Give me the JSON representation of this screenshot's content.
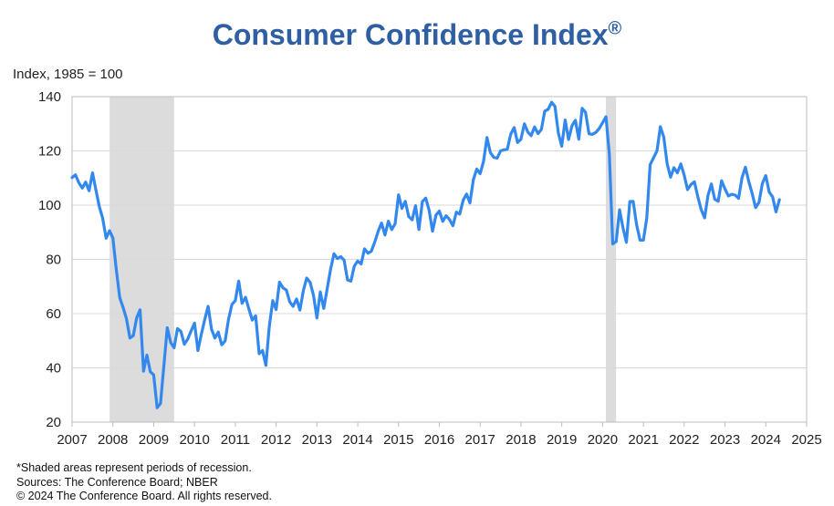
{
  "title": "Consumer Confidence Index",
  "title_mark": "®",
  "notes": [
    "*Shaded areas represent periods of recession.",
    "Sources: The Conference Board;  NBER",
    "© 2024 The Conference Board. All rights reserved."
  ],
  "colors": {
    "title": "#2e5fa3",
    "line": "#3388ee",
    "recession": "#dcdcdc",
    "grid": "#d9d9d9"
  },
  "chart_data": {
    "type": "line",
    "title": "Consumer Confidence Index®",
    "xlabel": "",
    "ylabel": "Index, 1985 = 100",
    "xlim": [
      2007,
      2025
    ],
    "ylim": [
      20,
      140
    ],
    "yticks": [
      20,
      40,
      60,
      80,
      100,
      120,
      140
    ],
    "xticks": [
      2007,
      2008,
      2009,
      2010,
      2011,
      2012,
      2013,
      2014,
      2015,
      2016,
      2017,
      2018,
      2019,
      2020,
      2021,
      2022,
      2023,
      2024,
      2025
    ],
    "grid": true,
    "recessions": [
      {
        "start": 2007.92,
        "end": 2009.5
      },
      {
        "start": 2020.08,
        "end": 2020.33
      }
    ],
    "series": [
      {
        "name": "Consumer Confidence Index",
        "x_start": 2007.0,
        "x_step": 0.08333,
        "values": [
          110.2,
          111.2,
          108.2,
          106.3,
          108.5,
          105.3,
          111.9,
          105.6,
          99.5,
          95.2,
          87.8,
          90.6,
          87.9,
          76.4,
          65.9,
          62.3,
          58.1,
          51.0,
          51.9,
          58.5,
          61.4,
          38.8,
          44.7,
          38.6,
          37.4,
          25.3,
          26.9,
          40.8,
          54.8,
          49.3,
          47.4,
          54.5,
          53.4,
          48.7,
          50.6,
          53.6,
          56.5,
          46.4,
          52.3,
          57.7,
          62.7,
          54.3,
          51.0,
          53.2,
          48.5,
          49.9,
          57.8,
          63.4,
          64.8,
          72.0,
          63.8,
          66.0,
          61.7,
          57.6,
          59.2,
          45.2,
          46.4,
          40.9,
          55.2,
          64.8,
          61.5,
          71.6,
          69.5,
          68.7,
          64.4,
          62.7,
          65.4,
          61.3,
          68.4,
          73.1,
          71.5,
          66.7,
          58.4,
          68.0,
          61.9,
          69.0,
          76.2,
          82.1,
          80.3,
          81.0,
          79.7,
          72.4,
          72.0,
          77.5,
          79.4,
          78.3,
          83.9,
          82.3,
          83.0,
          86.4,
          90.3,
          93.4,
          89.0,
          94.1,
          91.0,
          93.1,
          103.8,
          98.8,
          101.4,
          95.8,
          94.6,
          99.8,
          91.0,
          101.3,
          102.6,
          98.1,
          90.4,
          96.3,
          97.8,
          94.0,
          96.1,
          94.7,
          92.4,
          97.4,
          96.7,
          101.8,
          104.1,
          100.8,
          109.4,
          113.3,
          111.6,
          116.1,
          124.9,
          119.4,
          117.6,
          117.3,
          120.0,
          120.4,
          120.6,
          126.2,
          128.6,
          123.1,
          124.3,
          130.0,
          127.0,
          125.6,
          128.8,
          126.4,
          127.9,
          134.7,
          135.3,
          137.9,
          136.4,
          126.6,
          121.7,
          131.4,
          124.2,
          129.2,
          131.3,
          124.3,
          135.7,
          134.2,
          126.3,
          126.1,
          126.8,
          128.2,
          130.4,
          132.6,
          118.8,
          85.7,
          86.6,
          98.3,
          91.7,
          86.3,
          101.3,
          101.4,
          92.9,
          87.1,
          87.1,
          95.2,
          114.9,
          117.5,
          120.0,
          128.9,
          125.1,
          115.2,
          110.3,
          113.8,
          111.9,
          115.2,
          111.1,
          105.7,
          107.6,
          108.6,
          103.2,
          98.4,
          95.3,
          103.6,
          107.8,
          102.2,
          101.4,
          109.0,
          106.0,
          103.4,
          104.0,
          103.7,
          102.5,
          110.1,
          114.0,
          108.7,
          104.3,
          99.1,
          101.0,
          108.0,
          110.9,
          104.8,
          103.1,
          97.5,
          102.0
        ]
      }
    ]
  }
}
